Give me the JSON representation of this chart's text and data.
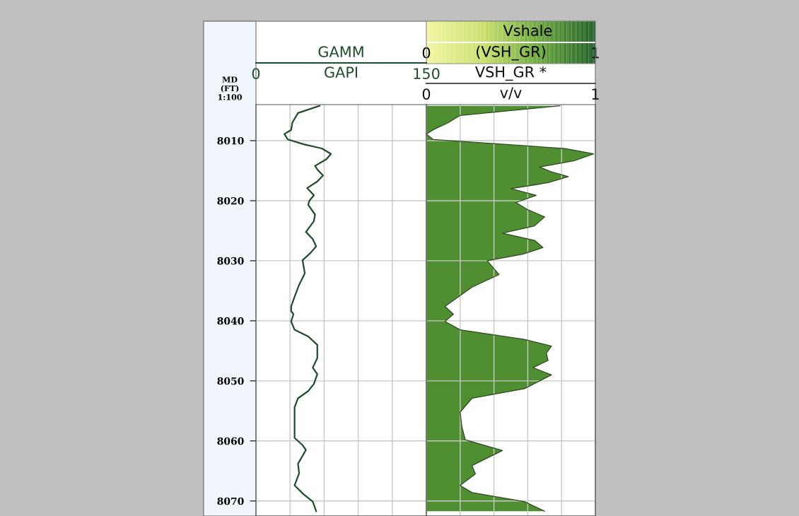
{
  "chart_data": [
    {
      "type": "line",
      "orientation": "horizontal",
      "ylabel": "MD\n(FT)\n1:100",
      "xlabel": "GAPI",
      "xlim": [
        0,
        150
      ],
      "xticks": [
        0,
        {
          "value": 30,
          "label": null
        },
        {
          "value": 60,
          "label": null
        },
        {
          "value": 90,
          "label": null
        },
        {
          "value": 120,
          "label": null
        },
        150
      ],
      "ylim": [
        8072.5,
        8004
      ],
      "yticks": [
        8010,
        8020,
        8030,
        8040,
        8050,
        8060,
        8070
      ],
      "grid": true,
      "legend": false,
      "x": [
        8004.2,
        8005.4,
        8007.0,
        8008.2,
        8008.9,
        8009.8,
        8010.6,
        8011.3,
        8012.2,
        8013.1,
        8014.2,
        8014.8,
        8015.8,
        8016.8,
        8017.9,
        8019.1,
        8020.0,
        8020.7,
        8022.3,
        8023.4,
        8025.2,
        8026.4,
        8027.6,
        8028.7,
        8029.9,
        8032.1,
        8034.0,
        8036.0,
        8037.6,
        8038.4,
        8038.9,
        8040.1,
        8041.5,
        8042.6,
        8044.0,
        8046.2,
        8047.8,
        8048.9,
        8050.5,
        8051.7,
        8052.9,
        8054.4,
        8056.8,
        8059.5,
        8060.7,
        8061.5,
        8063.8,
        8065.4,
        8067.4,
        8068.9,
        8070.1,
        8071.7
      ],
      "series": [
        {
          "name": "GAMM",
          "color": "#1e4d2b",
          "values": [
            56,
            37,
            32,
            31,
            25,
            28,
            42,
            58,
            66,
            62,
            52,
            54,
            59,
            54,
            45,
            51,
            47,
            46,
            52,
            51,
            44,
            50,
            53,
            48,
            41,
            43,
            38,
            34,
            31,
            31,
            33,
            31,
            34,
            46,
            54,
            54,
            50,
            54,
            51,
            46,
            37,
            34,
            34,
            34,
            41,
            44,
            37,
            38,
            34,
            42,
            50,
            53
          ]
        }
      ]
    },
    {
      "type": "area",
      "orientation": "horizontal",
      "title": "Vshale",
      "clabel": "(VSH_GR)",
      "clim": [
        0,
        1
      ],
      "cticks": [
        0,
        1
      ],
      "xlabel": "v/v",
      "xlim": [
        0,
        1
      ],
      "xticks": [
        0,
        {
          "value": 0.2,
          "label": null
        },
        {
          "value": 0.4,
          "label": null
        },
        {
          "value": 0.6,
          "label": null
        },
        {
          "value": 0.8,
          "label": null
        },
        1
      ],
      "ylim": [
        8072.5,
        8004
      ],
      "yticks": [
        8010,
        8020,
        8030,
        8040,
        8050,
        8060,
        8070
      ],
      "tick_labels": "x",
      "grid": true,
      "legend": false,
      "x": [
        8004.2,
        8005.8,
        8007.0,
        8008.2,
        8008.9,
        8009.8,
        8010.5,
        8011.3,
        8012.2,
        8013.3,
        8014.4,
        8015.2,
        8016.0,
        8017.0,
        8018.0,
        8019.1,
        8020.3,
        8021.5,
        8022.7,
        8024.2,
        8025.4,
        8026.6,
        8027.8,
        8028.9,
        8030.0,
        8032.3,
        8034.4,
        8037.6,
        8038.9,
        8040.1,
        8041.5,
        8043.1,
        8044.2,
        8045.4,
        8046.6,
        8047.8,
        8049.0,
        8051.3,
        8052.9,
        8055.2,
        8057.6,
        8059.8,
        8061.6,
        8064.1,
        8065.5,
        8067.4,
        8068.6,
        8070.1,
        8071.7
      ],
      "series": [
        {
          "name": "VSH_GR *",
          "color": "#4f8f32",
          "values": [
            0.79,
            0.2,
            0.13,
            0.04,
            0.0,
            0.04,
            0.4,
            0.82,
            0.99,
            0.88,
            0.67,
            0.74,
            0.84,
            0.72,
            0.5,
            0.65,
            0.53,
            0.6,
            0.7,
            0.64,
            0.45,
            0.64,
            0.69,
            0.57,
            0.36,
            0.43,
            0.27,
            0.11,
            0.16,
            0.11,
            0.2,
            0.58,
            0.74,
            0.71,
            0.72,
            0.63,
            0.74,
            0.58,
            0.27,
            0.2,
            0.21,
            0.23,
            0.45,
            0.27,
            0.29,
            0.2,
            0.27,
            0.58,
            0.7
          ]
        }
      ]
    }
  ]
}
